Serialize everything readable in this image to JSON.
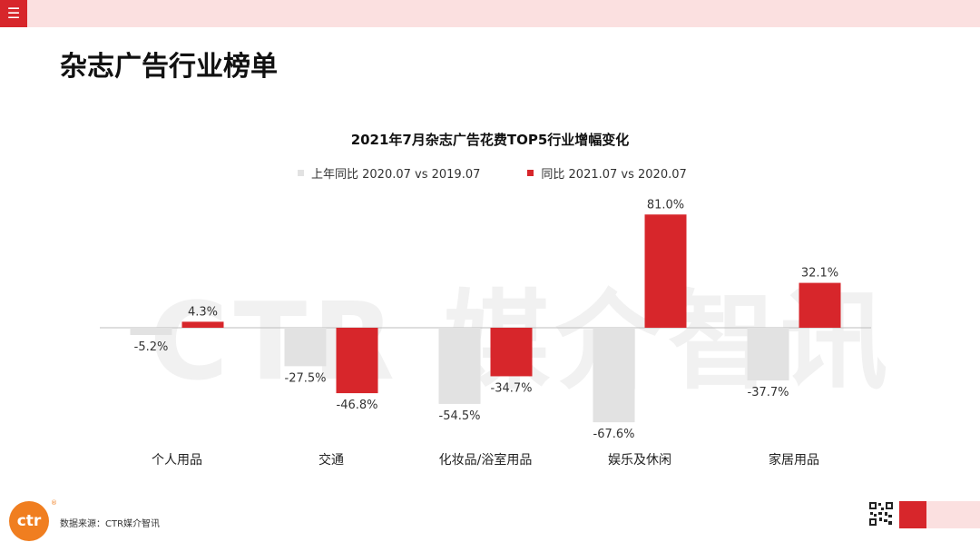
{
  "header": {
    "menu_icon": "☰",
    "title": "杂志广告行业榜单"
  },
  "watermark": "CTR 媒介智讯",
  "chart_data": {
    "type": "bar",
    "title": "2021年7月杂志广告花费TOP5行业增幅变化",
    "categories": [
      "个人用品",
      "交通",
      "化妆品/浴室用品",
      "娱乐及休闲",
      "家居用品"
    ],
    "series": [
      {
        "name": "上年同比 2020.07 vs 2019.07",
        "color": "#e2e2e2",
        "values": [
          -5.2,
          -27.5,
          -54.5,
          -67.6,
          -37.7
        ],
        "labels": [
          "-5.2%",
          "-27.5%",
          "-54.5%",
          "-67.6%",
          "-37.7%"
        ]
      },
      {
        "name": "同比 2021.07 vs 2020.07",
        "color": "#d7262b",
        "values": [
          4.3,
          -46.8,
          -34.7,
          81.0,
          32.1
        ],
        "labels": [
          "4.3%",
          "-46.8%",
          "-34.7%",
          "81.0%",
          "32.1%"
        ]
      }
    ],
    "legend_position": "top",
    "grid": false
  },
  "footer": {
    "source": "数据来源：CTR媒介智讯",
    "logo_text": "ctr",
    "registered": "®"
  }
}
